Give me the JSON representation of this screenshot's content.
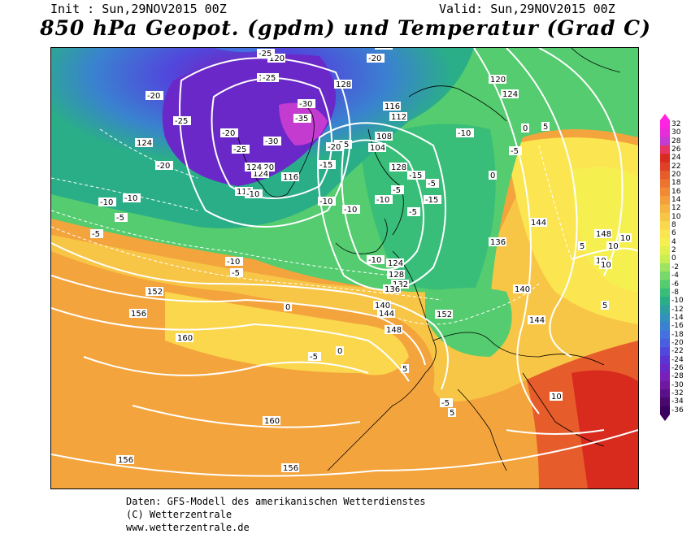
{
  "header": {
    "init": "Init : Sun,29NOV2015 00Z",
    "valid": "Valid: Sun,29NOV2015 00Z",
    "title": "850 hPa Geopot. (gpdm) und Temperatur (Grad C)"
  },
  "footer": {
    "line1": "Daten: GFS-Modell des amerikanischen Wetterdienstes",
    "line2": "(C) Wetterzentrale",
    "line3": "www.wetterzentrale.de"
  },
  "legend": {
    "labels": [
      "32",
      "30",
      "28",
      "26",
      "24",
      "22",
      "20",
      "18",
      "16",
      "14",
      "12",
      "10",
      "8",
      "6",
      "4",
      "2",
      "0",
      "-2",
      "-4",
      "-6",
      "-8",
      "-10",
      "-12",
      "-14",
      "-16",
      "-18",
      "-20",
      "-22",
      "-24",
      "-26",
      "-28",
      "-30",
      "-32",
      "-34",
      "-36"
    ],
    "colors": [
      "#ff22e0",
      "#e62dd8",
      "#c43bd0",
      "#e8355f",
      "#d92a1e",
      "#e0402a",
      "#e75c2b",
      "#ec7330",
      "#f08a35",
      "#f49f3b",
      "#f6b440",
      "#f8c646",
      "#fad74d",
      "#fbe651",
      "#f5f050",
      "#e0f04d",
      "#c9ee52",
      "#9fe460",
      "#78d86a",
      "#54cc6f",
      "#38be79",
      "#2aae88",
      "#2e9ea0",
      "#3391bb",
      "#3a82d0",
      "#4470e0",
      "#4a5ee0",
      "#5048dc",
      "#5a35d4",
      "#6a28c8",
      "#7a1fb8",
      "#7018a0",
      "#5a1088",
      "#48086e",
      "#3a0060"
    ]
  },
  "contour_labels": {
    "geopotential": [
      "120",
      "120",
      "128",
      "116",
      "112",
      "108",
      "104",
      "116",
      "112",
      "120",
      "124",
      "128",
      "132",
      "136",
      "140",
      "144",
      "148",
      "152",
      "156",
      "160",
      "160",
      "156",
      "156",
      "124",
      "124",
      "136",
      "144",
      "148",
      "144",
      "140",
      "152",
      "128",
      "124",
      "120",
      "124"
    ],
    "temperature": [
      "-25",
      "-25",
      "-20",
      "-25",
      "-30",
      "-35",
      "-20",
      "-25",
      "-20",
      "-30",
      "-25",
      "-20",
      "-15",
      "-10",
      "-10",
      "-10",
      "-5",
      "-10",
      "-10",
      "-5",
      "-5",
      "-10",
      "-5",
      "0",
      "5",
      "10",
      "10",
      "5",
      "10",
      "10",
      "0",
      "-5",
      "0",
      "5",
      "10",
      "5",
      "-5",
      "-10",
      "-5",
      "0",
      "-10",
      "-5",
      "-15",
      "-20",
      "-30",
      "-15",
      "-10",
      "-5",
      "5"
    ]
  }
}
